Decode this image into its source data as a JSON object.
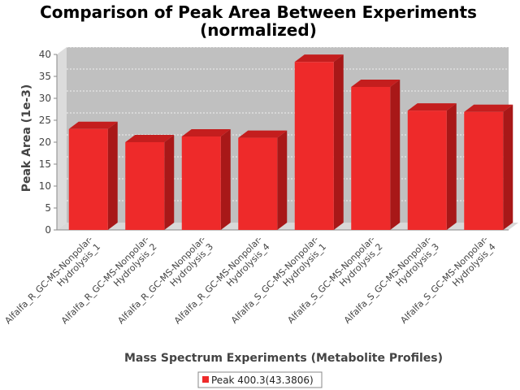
{
  "chart_data": {
    "type": "bar",
    "title_line1": "Comparison of Peak Area Between Experiments",
    "title_line2": "(normalized)",
    "xlabel": "Mass Spectrum Experiments (Metabolite Profiles)",
    "ylabel": "Peak Area (1e-3)",
    "ylim": [
      0,
      40
    ],
    "yticks": [
      "0",
      "5",
      "10",
      "15",
      "20",
      "25",
      "30",
      "35",
      "40"
    ],
    "grid": true,
    "legend_position": "bottom-center",
    "categories": [
      [
        "Alfalfa_R_GC-MS-Nonpolar-",
        "Hydrolysis_1"
      ],
      [
        "Alfalfa_R_GC-MS-Nonpolar-",
        "Hydrolysis_2"
      ],
      [
        "Alfalfa_R_GC-MS-Nonpolar-",
        "Hydrolysis_3"
      ],
      [
        "Alfalfa_R_GC-MS-Nonpolar-",
        "Hydrolysis_4"
      ],
      [
        "Alfalfa_S_GC-MS-Nonpolar-",
        "Hydrolysis_1"
      ],
      [
        "Alfalfa_S_GC-MS-Nonpolar-",
        "Hydrolysis_2"
      ],
      [
        "Alfalfa_S_GC-MS-Nonpolar-",
        "Hydrolysis_3"
      ],
      [
        "Alfalfa_S_GC-MS-Nonpolar-",
        "Hydrolysis_4"
      ]
    ],
    "series": [
      {
        "name": "Peak 400.3(43.3806)",
        "color": "#ee2a2a",
        "values": [
          23.0,
          20.0,
          21.3,
          21.0,
          38.3,
          32.6,
          27.2,
          26.9
        ]
      }
    ],
    "colors": {
      "plot_background": "#c0c0c0",
      "floor": "#d8d8d8",
      "side_wall": "#dcdcdc",
      "bar_front": "#ee2a2a",
      "bar_top": "#c41e1e",
      "bar_side": "#a81818"
    }
  }
}
